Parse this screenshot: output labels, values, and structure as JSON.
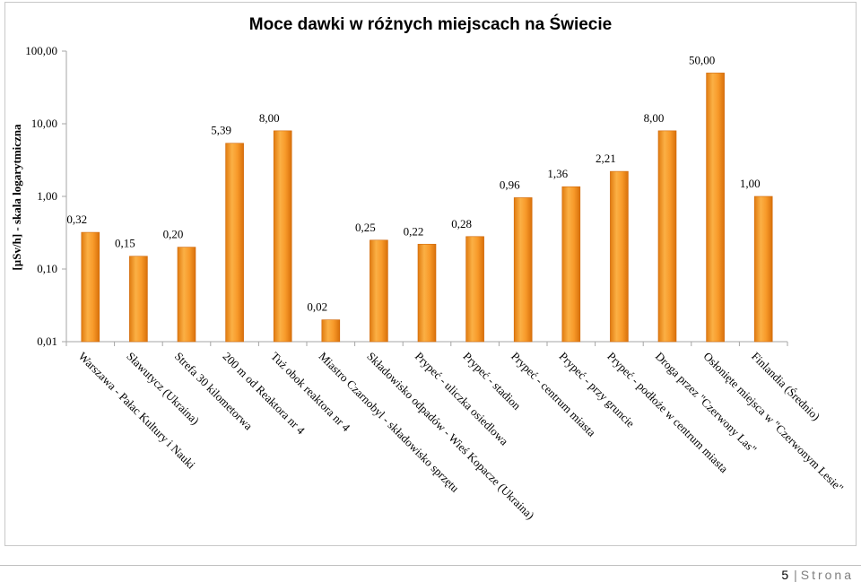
{
  "chart_data": {
    "type": "bar",
    "title": "Moce dawki w różnych miejscach na Świecie",
    "ylabel": "[µSv/h] - skala logarytmiczna",
    "xlabel": "",
    "yscale": "log",
    "ylim": [
      0.01,
      100
    ],
    "yticks": [
      "0,01",
      "0,10",
      "1,00",
      "10,00",
      "100,00"
    ],
    "yticks_values": [
      0.01,
      0.1,
      1,
      10,
      100
    ],
    "grid": false,
    "bar_color": "#f7941d",
    "categories": [
      "Warszawa - Pałac Kultury i Nauki",
      "Sławutycz (Ukraina)",
      "Strefa 30 kilometorwa",
      "200 m od Reaktora nr 4",
      "Tuż obok reaktora nr 4",
      "Miastro Czarnobyl - składowisko sprzętu",
      "Składowisko odpadów - Wieś Kopacze (Ukraina)",
      "Prypeć - uliczka osiedlowa",
      "Prypeć - stadion",
      "Prypeć - centrum miasta",
      "Prypeć - przy gruncie",
      "Prypeć - podłoże w centrum miasta",
      "Droga przez \"Czerwony Las\"",
      "Osłonięte miejsca w \"Czerwonym Lesie\"",
      "Finlandia (Średnio)"
    ],
    "values": [
      0.32,
      0.15,
      0.2,
      5.39,
      8.0,
      0.02,
      0.25,
      0.22,
      0.28,
      0.96,
      1.36,
      2.21,
      8.0,
      50.0,
      1.0
    ],
    "value_labels": [
      "0,32",
      "0,15",
      "0,20",
      "5,39",
      "8,00",
      "0,02",
      "0,25",
      "0,22",
      "0,28",
      "0,96",
      "1,36",
      "2,21",
      "8,00",
      "50,00",
      "1,00"
    ]
  },
  "footer": {
    "page_number": "5",
    "separator": "|",
    "page_word": "Strona"
  }
}
